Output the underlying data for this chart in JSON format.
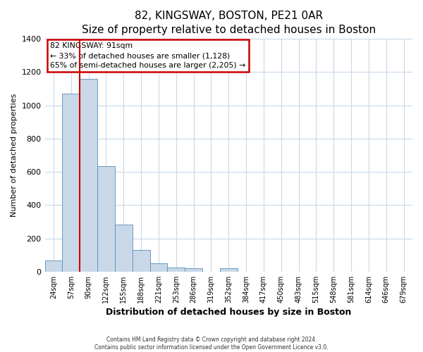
{
  "title": "82, KINGSWAY, BOSTON, PE21 0AR",
  "subtitle": "Size of property relative to detached houses in Boston",
  "xlabel": "Distribution of detached houses by size in Boston",
  "ylabel": "Number of detached properties",
  "footer_lines": [
    "Contains HM Land Registry data © Crown copyright and database right 2024.",
    "Contains public sector information licensed under the Open Government Licence v3.0."
  ],
  "bin_labels": [
    "24sqm",
    "57sqm",
    "90sqm",
    "122sqm",
    "155sqm",
    "188sqm",
    "221sqm",
    "253sqm",
    "286sqm",
    "319sqm",
    "352sqm",
    "384sqm",
    "417sqm",
    "450sqm",
    "483sqm",
    "515sqm",
    "548sqm",
    "581sqm",
    "614sqm",
    "646sqm",
    "679sqm"
  ],
  "bar_values": [
    65,
    1070,
    1160,
    635,
    285,
    130,
    50,
    25,
    20,
    0,
    20,
    0,
    0,
    0,
    0,
    0,
    0,
    0,
    0,
    0,
    0
  ],
  "bar_color": "#c8d8e8",
  "bar_edge_color": "#5b8db8",
  "vline_x_index": 2,
  "vline_color": "#cc0000",
  "annotation_title": "82 KINGSWAY: 91sqm",
  "annotation_line1": "← 33% of detached houses are smaller (1,128)",
  "annotation_line2": "65% of semi-detached houses are larger (2,205) →",
  "annotation_box_color": "#cc0000",
  "ylim": [
    0,
    1400
  ],
  "yticks": [
    0,
    200,
    400,
    600,
    800,
    1000,
    1200,
    1400
  ],
  "background_color": "#ffffff",
  "plot_background_color": "#ffffff",
  "grid_color": "#c8d8e8",
  "title_fontsize": 11,
  "subtitle_fontsize": 9.5
}
